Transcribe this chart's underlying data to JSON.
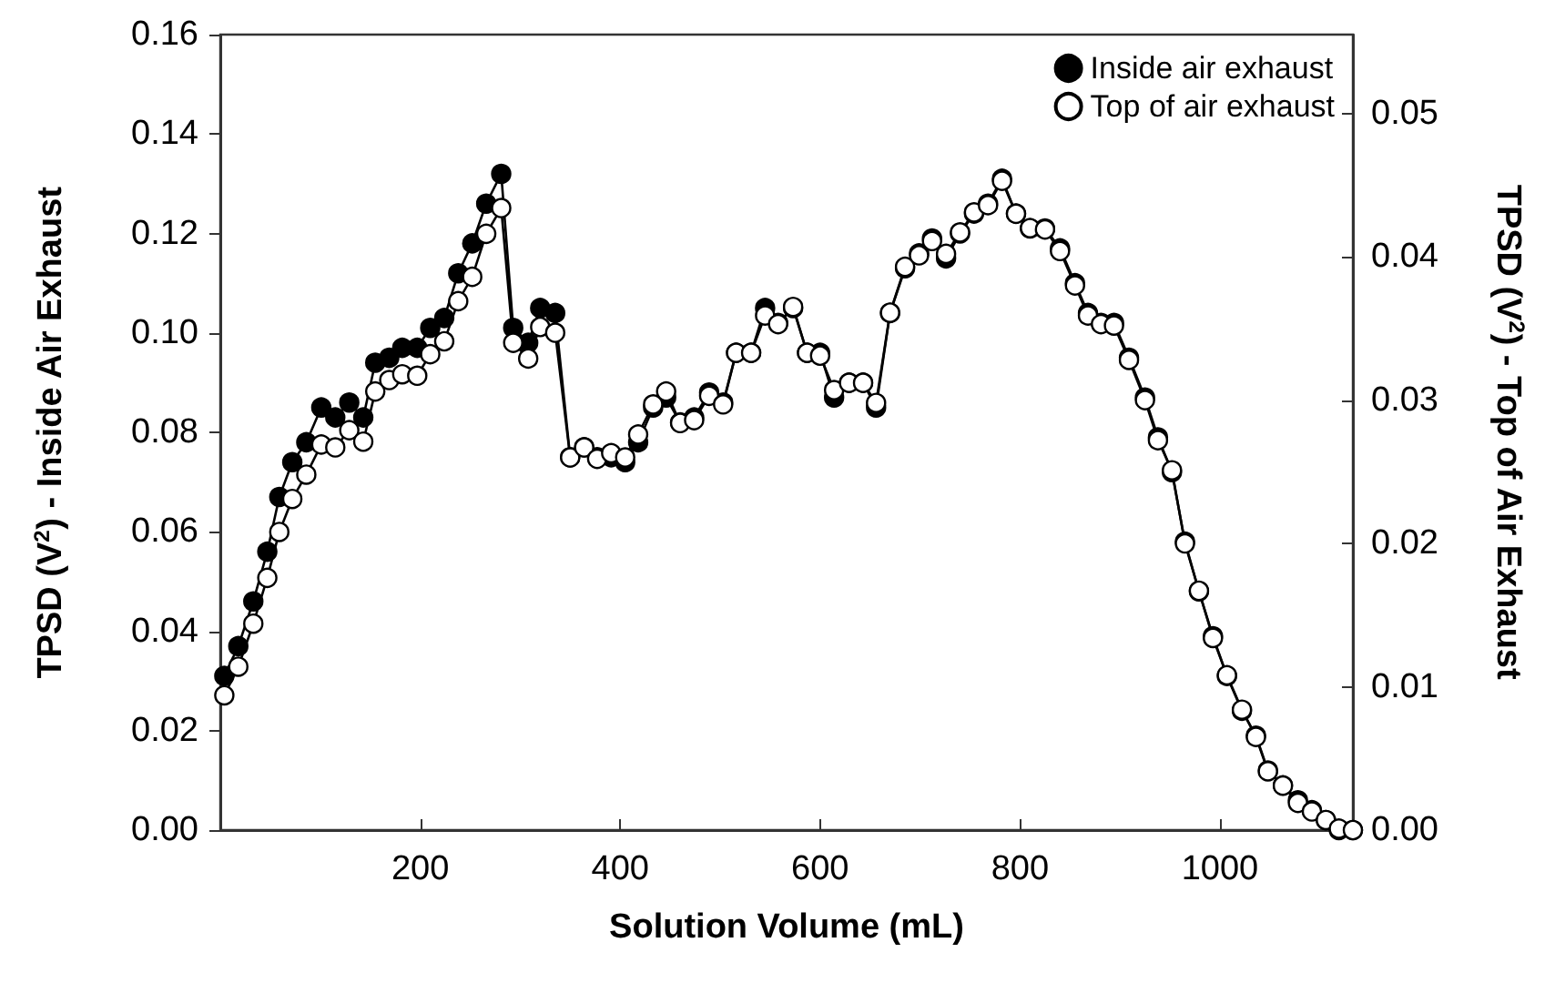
{
  "chart_data": {
    "type": "line",
    "xlabel": "Solution Volume (mL)",
    "ylabel": "TPSD (V$^{2}$) - Inside Air Exhaust",
    "y2label": "TPSD (V$^{2}$) - Top of Air Exhaust",
    "x": [
      4,
      18,
      33,
      47,
      59,
      72,
      86,
      101,
      115,
      129,
      143,
      155,
      169,
      182,
      197,
      210,
      224,
      238,
      252,
      266,
      281,
      293,
      308,
      320,
      335,
      350,
      364,
      377,
      391,
      405,
      418,
      433,
      446,
      460,
      474,
      489,
      503,
      516,
      531,
      545,
      558,
      573,
      587,
      600,
      614,
      629,
      643,
      656,
      670,
      685,
      699,
      712,
      726,
      740,
      754,
      768,
      782,
      796,
      810,
      825,
      840,
      855,
      868,
      881,
      894,
      909,
      925,
      938,
      952,
      965,
      979,
      993,
      1007,
      1022,
      1036,
      1048,
      1063,
      1078,
      1092,
      1106,
      1119,
      1133
    ],
    "series": [
      {
        "name": "Inside air exhaust",
        "color": "#000000",
        "values": [
          0.031,
          0.037,
          0.046,
          0.056,
          0.067,
          0.074,
          0.078,
          0.085,
          0.083,
          0.086,
          0.083,
          0.094,
          0.095,
          0.097,
          0.097,
          0.101,
          0.103,
          0.112,
          0.118,
          0.126,
          0.132,
          0.101,
          0.098,
          0.105,
          0.104,
          0.075,
          0.077,
          0.075,
          0.075,
          0.074,
          0.078,
          0.085,
          0.087,
          0.082,
          0.083,
          0.088,
          0.086,
          0.096,
          0.096,
          0.105,
          0.102,
          0.105,
          0.096,
          0.096,
          0.087,
          0.09,
          0.09,
          0.085,
          0.104,
          0.113,
          0.116,
          0.119,
          0.115,
          0.12,
          0.124,
          0.126,
          0.131,
          0.124,
          0.121,
          0.121,
          0.117,
          0.11,
          0.104,
          0.102,
          0.102,
          0.095,
          0.087,
          0.079,
          0.072,
          0.058,
          0.048,
          0.039,
          0.031,
          0.024,
          0.019,
          0.012,
          0.009,
          0.006,
          0.004,
          0.002,
          0.0,
          0.0
        ]
      },
      {
        "name": "Top of air exhaust",
        "color": "#ffffff",
        "axis": "y2",
        "values": [
          0.0094,
          0.0114,
          0.0144,
          0.0176,
          0.0208,
          0.0231,
          0.0248,
          0.0269,
          0.0267,
          0.0279,
          0.0271,
          0.0306,
          0.0314,
          0.0318,
          0.0317,
          0.0332,
          0.0341,
          0.0369,
          0.0386,
          0.0416,
          0.0434,
          0.034,
          0.0329,
          0.0351,
          0.0347,
          0.026,
          0.0267,
          0.0259,
          0.0263,
          0.026,
          0.0276,
          0.0297,
          0.0306,
          0.0284,
          0.0286,
          0.0303,
          0.0297,
          0.0333,
          0.0333,
          0.0359,
          0.0353,
          0.0365,
          0.0333,
          0.0331,
          0.0307,
          0.0312,
          0.0312,
          0.0298,
          0.0361,
          0.0393,
          0.0401,
          0.0411,
          0.0402,
          0.0417,
          0.0431,
          0.0436,
          0.0453,
          0.043,
          0.042,
          0.0419,
          0.0404,
          0.038,
          0.0359,
          0.0353,
          0.0352,
          0.0328,
          0.03,
          0.0272,
          0.0251,
          0.02,
          0.0167,
          0.0134,
          0.0108,
          0.0084,
          0.0065,
          0.0041,
          0.0031,
          0.0019,
          0.0013,
          0.0007,
          0.0001,
          0.0
        ]
      }
    ],
    "xlim": [
      0,
      1133
    ],
    "xticks": [
      200,
      400,
      600,
      800,
      1000
    ],
    "ylim": [
      0,
      0.16
    ],
    "yticks": [
      {
        "value": 0,
        "label": "0.00"
      },
      {
        "value": 0.02,
        "label": "0.02"
      },
      {
        "value": 0.04,
        "label": "0.04"
      },
      {
        "value": 0.06,
        "label": "0.06"
      },
      {
        "value": 0.08,
        "label": "0.08"
      },
      {
        "value": 0.1,
        "label": "0.10"
      },
      {
        "value": 0.12,
        "label": "0.12"
      },
      {
        "value": 0.14,
        "label": "0.14"
      },
      {
        "value": 0.16,
        "label": "0.16"
      }
    ],
    "y2lim": [
      0,
      0.0555
    ],
    "y2ticks": [
      {
        "value": 0,
        "label": "0.00"
      },
      {
        "value": 0.01,
        "label": "0.01"
      },
      {
        "value": 0.02,
        "label": "0.02"
      },
      {
        "value": 0.03,
        "label": "0.03"
      },
      {
        "value": 0.04,
        "label": "0.04"
      },
      {
        "value": 0.05,
        "label": "0.05"
      }
    ],
    "grid": false,
    "legend": "top right",
    "marker": "circle",
    "line_style": "solid"
  }
}
